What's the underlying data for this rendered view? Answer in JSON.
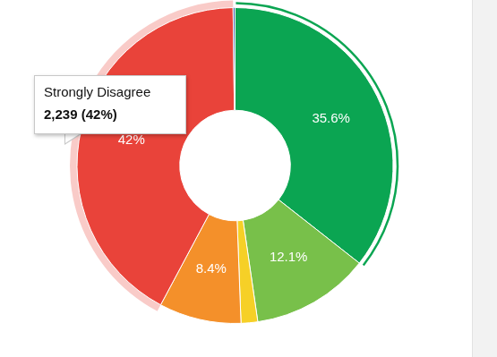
{
  "chart_data": {
    "type": "doughnut",
    "categories": [
      null,
      null,
      null,
      null,
      "Strongly Disagree",
      null
    ],
    "values": [
      35.6,
      12.1,
      1.7,
      8.4,
      42,
      0.2
    ],
    "colors": [
      "#0ba552",
      "#78c04a",
      "#f6d027",
      "#f4902a",
      "#e9433a",
      "#3f5fa8"
    ],
    "data_labels": true,
    "value_labels": [
      "35.6%",
      "12.1%",
      null,
      "8.4%",
      "42%",
      null
    ],
    "annotation": {
      "category": "Strongly Disagree",
      "value": 2239,
      "label": "2,239 (42%)"
    }
  }
}
